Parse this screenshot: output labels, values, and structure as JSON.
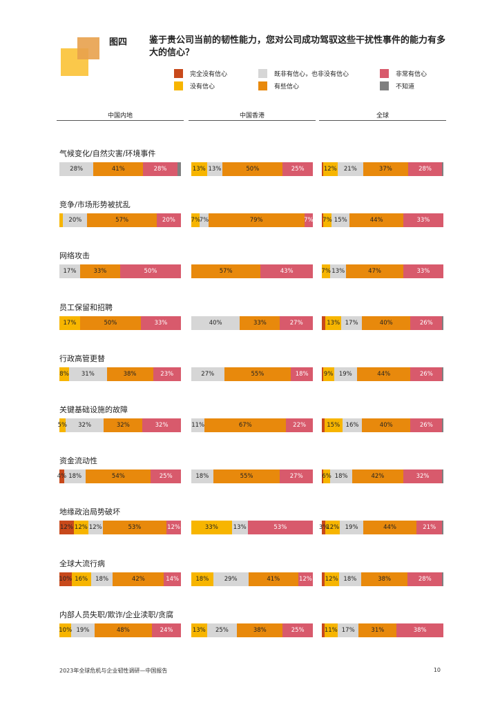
{
  "figure_label": "图四",
  "title": "鉴于贵公司当前的韧性能力，您对公司成功驾驭这些干扰性事件的能力有多大的信心？",
  "footer": {
    "report": "2023年全球危机与企业韧性调研—中国报告",
    "page": "10"
  },
  "colors": {
    "none": "#c8491b",
    "low": "#f7b500",
    "neutral": "#d6d6d6",
    "some": "#e8890c",
    "very": "#d85a6c",
    "unknown": "#7f7f7f",
    "deco_a": "#e8a14c",
    "deco_b": "#fbc84a"
  },
  "chart_data": {
    "type": "bar",
    "orientation": "horizontal",
    "stacked": true,
    "normalized": true,
    "legend": [
      {
        "key": "none",
        "label": "完全没有信心"
      },
      {
        "key": "neutral",
        "label": "既非有信心，也非没有信心"
      },
      {
        "key": "very",
        "label": "非常有信心"
      },
      {
        "key": "low",
        "label": "没有信心"
      },
      {
        "key": "some",
        "label": "有些信心"
      },
      {
        "key": "unknown",
        "label": "不知道"
      }
    ],
    "series_order": [
      "none",
      "low",
      "neutral",
      "some",
      "very",
      "unknown"
    ],
    "regions": [
      "中国内地",
      "中国香港",
      "全球"
    ],
    "categories": [
      {
        "name": "气候变化/自然灾害/环境事件",
        "bars": [
          {
            "none": 0,
            "low": 0,
            "neutral": 28,
            "some": 41,
            "very": 28,
            "unknown": 3,
            "labels": {
              "neutral": "28%",
              "some": "41%",
              "very": "28%"
            }
          },
          {
            "none": 0,
            "low": 13,
            "neutral": 13,
            "some": 50,
            "very": 25,
            "unknown": 0,
            "labels": {
              "low": "13%",
              "neutral": "13%",
              "some": "50%",
              "very": "25%"
            }
          },
          {
            "none": 1,
            "low": 12,
            "neutral": 21,
            "some": 37,
            "very": 28,
            "unknown": 1,
            "labels": {
              "low": "12%",
              "neutral": "21%",
              "some": "37%",
              "very": "28%"
            }
          }
        ]
      },
      {
        "name": "竞争/市场形势被扰乱",
        "bars": [
          {
            "none": 0,
            "low": 3,
            "neutral": 20,
            "some": 57,
            "very": 20,
            "unknown": 0,
            "labels": {
              "neutral": "20%",
              "some": "57%",
              "very": "20%"
            }
          },
          {
            "none": 0,
            "low": 7,
            "neutral": 7,
            "some": 79,
            "very": 7,
            "unknown": 0,
            "labels": {
              "low": "7%",
              "neutral": "7%",
              "some": "79%",
              "very": "7%"
            }
          },
          {
            "none": 1,
            "low": 7,
            "neutral": 15,
            "some": 44,
            "very": 33,
            "unknown": 0,
            "labels": {
              "low": "7%",
              "neutral": "15%",
              "some": "44%",
              "very": "33%"
            }
          }
        ]
      },
      {
        "name": "网络攻击",
        "bars": [
          {
            "none": 0,
            "low": 0,
            "neutral": 17,
            "some": 33,
            "very": 50,
            "unknown": 0,
            "labels": {
              "neutral": "17%",
              "some": "33%",
              "very": "50%"
            }
          },
          {
            "none": 0,
            "low": 0,
            "neutral": 0,
            "some": 57,
            "very": 43,
            "unknown": 0,
            "labels": {
              "some": "57%",
              "very": "43%"
            }
          },
          {
            "none": 0,
            "low": 7,
            "neutral": 13,
            "some": 47,
            "very": 33,
            "unknown": 0,
            "labels": {
              "low": "7%",
              "neutral": "13%",
              "some": "47%",
              "very": "33%"
            }
          }
        ]
      },
      {
        "name": "员工保留和招聘",
        "bars": [
          {
            "none": 0,
            "low": 17,
            "neutral": 0,
            "some": 50,
            "very": 33,
            "unknown": 0,
            "labels": {
              "low": "17%",
              "some": "50%",
              "very": "33%"
            }
          },
          {
            "none": 0,
            "low": 0,
            "neutral": 40,
            "some": 33,
            "very": 27,
            "unknown": 0,
            "labels": {
              "neutral": "40%",
              "some": "33%",
              "very": "27%"
            }
          },
          {
            "none": 3,
            "low": 13,
            "neutral": 17,
            "some": 40,
            "very": 26,
            "unknown": 1,
            "labels": {
              "low": "13%",
              "neutral": "17%",
              "some": "40%",
              "very": "26%"
            }
          }
        ]
      },
      {
        "name": "行政高管更替",
        "bars": [
          {
            "none": 0,
            "low": 8,
            "neutral": 31,
            "some": 38,
            "very": 23,
            "unknown": 0,
            "labels": {
              "low": "8%",
              "neutral": "31%",
              "some": "38%",
              "very": "23%"
            }
          },
          {
            "none": 0,
            "low": 0,
            "neutral": 27,
            "some": 55,
            "very": 18,
            "unknown": 0,
            "labels": {
              "neutral": "27%",
              "some": "55%",
              "very": "18%"
            }
          },
          {
            "none": 1,
            "low": 9,
            "neutral": 19,
            "some": 44,
            "very": 26,
            "unknown": 1,
            "labels": {
              "low": "9%",
              "neutral": "19%",
              "some": "44%",
              "very": "26%"
            }
          }
        ]
      },
      {
        "name": "关键基础设施的故障",
        "bars": [
          {
            "none": 0,
            "low": 5,
            "neutral": 32,
            "some": 32,
            "very": 32,
            "unknown": 0,
            "labels": {
              "low": "5%",
              "neutral": "32%",
              "some": "32%",
              "very": "32%"
            }
          },
          {
            "none": 0,
            "low": 0,
            "neutral": 11,
            "some": 67,
            "very": 22,
            "unknown": 0,
            "labels": {
              "neutral": "11%",
              "some": "67%",
              "very": "22%"
            }
          },
          {
            "none": 2,
            "low": 15,
            "neutral": 16,
            "some": 40,
            "very": 26,
            "unknown": 1,
            "labels": {
              "low": "15%",
              "neutral": "16%",
              "some": "40%",
              "very": "26%"
            }
          }
        ]
      },
      {
        "name": "资金流动性",
        "bars": [
          {
            "none": 4,
            "low": 0,
            "neutral": 18,
            "some": 54,
            "very": 25,
            "unknown": 0,
            "labels": {
              "none": "4%",
              "neutral": "18%",
              "some": "54%",
              "very": "25%"
            }
          },
          {
            "none": 0,
            "low": 0,
            "neutral": 18,
            "some": 55,
            "very": 27,
            "unknown": 0,
            "labels": {
              "neutral": "18%",
              "some": "55%",
              "very": "27%"
            }
          },
          {
            "none": 1,
            "low": 6,
            "neutral": 18,
            "some": 42,
            "very": 32,
            "unknown": 1,
            "labels": {
              "low": "6%",
              "neutral": "18%",
              "some": "42%",
              "very": "32%"
            }
          }
        ]
      },
      {
        "name": "地缘政治局势破坏",
        "bars": [
          {
            "none": 12,
            "low": 12,
            "neutral": 12,
            "some": 53,
            "very": 12,
            "unknown": 0,
            "labels": {
              "none": "12%",
              "low": "12%",
              "neutral": "12%",
              "some": "53%",
              "very": "12%"
            }
          },
          {
            "none": 0,
            "low": 33,
            "neutral": 13,
            "some": 0,
            "very": 53,
            "unknown": 0,
            "labels": {
              "low": "33%",
              "neutral": "13%",
              "very": "53%"
            }
          },
          {
            "none": 3,
            "low": 12,
            "neutral": 19,
            "some": 44,
            "very": 21,
            "unknown": 1,
            "labels": {
              "none": "3%",
              "low": "12%",
              "neutral": "19%",
              "some": "44%",
              "very": "21%"
            }
          }
        ]
      },
      {
        "name": "全球大流行病",
        "bars": [
          {
            "none": 10,
            "low": 16,
            "neutral": 18,
            "some": 42,
            "very": 14,
            "unknown": 0,
            "labels": {
              "none": "10%",
              "low": "16%",
              "neutral": "18%",
              "some": "42%",
              "very": "14%"
            }
          },
          {
            "none": 0,
            "low": 18,
            "neutral": 29,
            "some": 41,
            "very": 12,
            "unknown": 0,
            "labels": {
              "low": "18%",
              "neutral": "29%",
              "some": "41%",
              "very": "12%"
            }
          },
          {
            "none": 2,
            "low": 12,
            "neutral": 18,
            "some": 38,
            "very": 28,
            "unknown": 1,
            "labels": {
              "low": "12%",
              "neutral": "18%",
              "some": "38%",
              "very": "28%"
            }
          }
        ]
      },
      {
        "name": "内部人员失职/欺诈/企业渎职/贪腐",
        "bars": [
          {
            "none": 0,
            "low": 10,
            "neutral": 19,
            "some": 48,
            "very": 24,
            "unknown": 0,
            "labels": {
              "low": "10%",
              "neutral": "19%",
              "some": "48%",
              "very": "24%"
            }
          },
          {
            "none": 0,
            "low": 13,
            "neutral": 25,
            "some": 38,
            "very": 25,
            "unknown": 0,
            "labels": {
              "low": "13%",
              "neutral": "25%",
              "some": "38%",
              "very": "25%"
            }
          },
          {
            "none": 2,
            "low": 11,
            "neutral": 17,
            "some": 31,
            "very": 38,
            "unknown": 0,
            "labels": {
              "low": "11%",
              "neutral": "17%",
              "some": "31%",
              "very": "38%"
            }
          }
        ]
      }
    ]
  }
}
